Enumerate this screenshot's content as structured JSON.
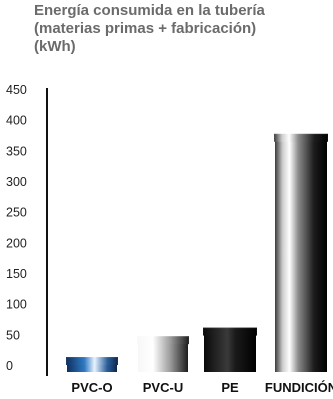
{
  "chart_data": {
    "type": "bar",
    "title_lines": [
      "Energía consumida en la tubería",
      "(materias primas + fabricación)",
      "(kWh)"
    ],
    "categories": [
      "PVC-O",
      "PVC-U",
      "PE",
      "FUNDICIÓN"
    ],
    "values": [
      13,
      47,
      61,
      377
    ],
    "ylim": [
      0,
      450
    ],
    "yticks": [
      0,
      50,
      100,
      150,
      200,
      250,
      300,
      350,
      400,
      450
    ],
    "grid": false,
    "legend": "none",
    "colors": [
      "#1f5a99",
      "#d8d8d8",
      "#222222",
      "#6e6e6e"
    ]
  }
}
